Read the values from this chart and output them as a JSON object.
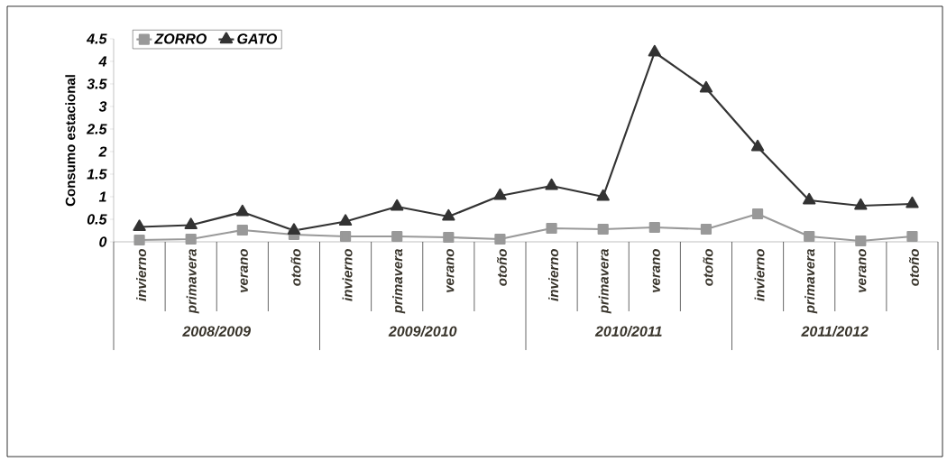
{
  "chart_data": {
    "type": "line",
    "ylabel": "Consumo estacional",
    "categories": [
      "invierno",
      "primavera",
      "verano",
      "otoño",
      "invierno",
      "primavera",
      "verano",
      "otoño",
      "invierno",
      "primavera",
      "verano",
      "otoño",
      "invierno",
      "primavera",
      "verano",
      "otoño"
    ],
    "annotations": [
      "2008/2009",
      "2009/2010",
      "2010/2011",
      "2011/2012"
    ],
    "series": [
      {
        "name": "ZORRO",
        "color": "#999999",
        "marker": "square",
        "values": [
          0.04,
          0.06,
          0.26,
          0.16,
          0.12,
          0.12,
          0.1,
          0.06,
          0.3,
          0.28,
          0.32,
          0.28,
          0.62,
          0.12,
          0.02,
          0.12
        ]
      },
      {
        "name": "GATO",
        "color": "#333333",
        "marker": "triangle",
        "values": [
          0.33,
          0.37,
          0.66,
          0.25,
          0.45,
          0.78,
          0.56,
          1.02,
          1.24,
          1.0,
          4.2,
          3.4,
          2.1,
          0.92,
          0.8,
          0.84
        ]
      }
    ],
    "ylim": [
      0,
      4.5
    ],
    "yticks": [
      0,
      0.5,
      1,
      1.5,
      2,
      2.5,
      3,
      3.5,
      4,
      4.5
    ],
    "legend": "top left",
    "grid": false
  }
}
